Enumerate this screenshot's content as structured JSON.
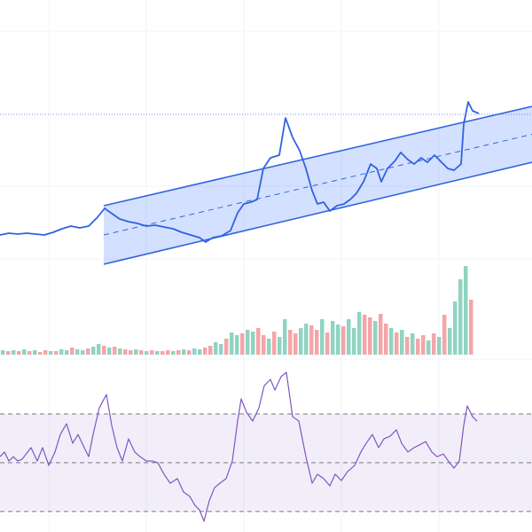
{
  "chart_data": [
    {
      "type": "line",
      "pane": "price",
      "xlim": [
        0,
        600
      ],
      "ylim": [
        0,
        290
      ],
      "x": [
        0,
        10,
        20,
        30,
        40,
        50,
        60,
        70,
        80,
        90,
        100,
        110,
        118,
        125,
        135,
        145,
        155,
        165,
        175,
        185,
        195,
        205,
        215,
        225,
        232,
        240,
        250,
        260,
        268,
        275,
        283,
        290,
        297,
        305,
        315,
        322,
        330,
        338,
        345,
        352,
        358,
        365,
        372,
        380,
        388,
        395,
        402,
        410,
        418,
        425,
        430,
        437,
        445,
        452,
        460,
        467,
        475,
        482,
        490,
        497,
        505,
        512,
        520,
        523,
        528,
        533,
        540
      ],
      "values": [
        25,
        27,
        26,
        27,
        26,
        25,
        28,
        32,
        35,
        33,
        35,
        45,
        55,
        50,
        43,
        40,
        38,
        35,
        36,
        34,
        32,
        28,
        25,
        22,
        17,
        22,
        24,
        30,
        50,
        60,
        62,
        65,
        100,
        112,
        115,
        157,
        135,
        120,
        100,
        75,
        60,
        62,
        52,
        58,
        60,
        65,
        72,
        85,
        105,
        100,
        85,
        100,
        108,
        118,
        110,
        105,
        112,
        107,
        115,
        108,
        100,
        98,
        105,
        150,
        175,
        165,
        162
      ],
      "color": "#2f63e0",
      "channel": {
        "x": [
          117,
          600
        ],
        "upper": [
          58,
          170
        ],
        "middle": [
          25,
          138.5
        ],
        "lower": [
          -8,
          107
        ],
        "color": "#3366dd",
        "fill": "rgba(41,98,255,0.2)"
      },
      "level": 161,
      "level_color": "#6f8fe6"
    },
    {
      "type": "volume",
      "pane": "volume",
      "ylim": [
        0,
        110
      ],
      "values": [
        5,
        4,
        5,
        4,
        6,
        4,
        5,
        3,
        5,
        4,
        4,
        6,
        5,
        8,
        6,
        5,
        7,
        9,
        12,
        10,
        8,
        9,
        7,
        6,
        5,
        6,
        5,
        4,
        5,
        4,
        4,
        5,
        4,
        5,
        6,
        5,
        7,
        6,
        8,
        10,
        14,
        12,
        18,
        25,
        22,
        24,
        28,
        26,
        30,
        22,
        18,
        26,
        20,
        40,
        28,
        24,
        30,
        35,
        33,
        28,
        40,
        25,
        38,
        34,
        32,
        40,
        30,
        48,
        45,
        42,
        38,
        46,
        35,
        30,
        25,
        28,
        20,
        24,
        18,
        22,
        16,
        24,
        20,
        45,
        30,
        60,
        85,
        100,
        62
      ],
      "up": [
        true,
        false,
        true,
        false,
        true,
        false,
        true,
        false,
        false,
        true,
        false,
        true,
        true,
        false,
        true,
        true,
        false,
        true,
        true,
        false,
        true,
        false,
        true,
        false,
        false,
        true,
        false,
        true,
        false,
        true,
        false,
        false,
        true,
        false,
        true,
        false,
        true,
        true,
        false,
        false,
        true,
        true,
        false,
        true,
        true,
        false,
        true,
        true,
        false,
        false,
        true,
        false,
        true,
        true,
        false,
        false,
        true,
        true,
        false,
        false,
        true,
        false,
        true,
        true,
        false,
        true,
        true,
        true,
        false,
        false,
        true,
        false,
        false,
        true,
        false,
        true,
        false,
        true,
        false,
        false,
        true,
        false,
        true,
        false,
        true,
        true,
        true,
        true,
        false
      ],
      "up_color": "#8fd4c1",
      "down_color": "#f4a5a8"
    },
    {
      "type": "line",
      "pane": "rsi",
      "xlim": [
        0,
        600
      ],
      "ylim": [
        21.6,
        90.7
      ],
      "x": [
        0,
        5,
        10,
        15,
        20,
        25,
        35,
        42,
        48,
        55,
        62,
        68,
        75,
        82,
        88,
        95,
        100,
        105,
        112,
        120,
        126,
        132,
        138,
        145,
        152,
        158,
        165,
        172,
        178,
        185,
        192,
        200,
        207,
        214,
        220,
        225,
        230,
        236,
        242,
        248,
        255,
        262,
        268,
        272,
        278,
        285,
        292,
        298,
        305,
        310,
        317,
        323,
        330,
        337,
        345,
        352,
        358,
        365,
        372,
        378,
        385,
        392,
        400,
        407,
        413,
        420,
        427,
        433,
        440,
        447,
        453,
        460,
        467,
        473,
        480,
        487,
        493,
        500,
        507,
        512,
        518,
        523,
        527,
        533,
        538
      ],
      "values": [
        52.5,
        54.4,
        50.7,
        52.5,
        50.7,
        51.5,
        56.2,
        50.7,
        56.2,
        48.9,
        54.4,
        61.6,
        66.0,
        58.0,
        61.6,
        56.2,
        52.5,
        61.6,
        72.5,
        78.0,
        65.3,
        56.2,
        50.7,
        59.8,
        54.4,
        52.5,
        50.7,
        50.7,
        50.0,
        45.3,
        41.6,
        43.5,
        38.0,
        36.2,
        32.5,
        30.7,
        26.0,
        34.4,
        39.8,
        41.6,
        43.5,
        50.7,
        67.1,
        76.2,
        70.7,
        67.1,
        72.5,
        81.6,
        84.2,
        79.8,
        85.3,
        87.1,
        68.9,
        67.1,
        52.5,
        41.6,
        45.3,
        43.5,
        40.5,
        45.3,
        42.7,
        46.4,
        48.9,
        54.4,
        58.0,
        61.6,
        56.2,
        59.8,
        60.9,
        63.5,
        58.0,
        54.4,
        56.2,
        57.3,
        58.7,
        54.4,
        52.5,
        53.6,
        50.0,
        47.8,
        50.7,
        65.3,
        73.3,
        68.9,
        67.1
      ],
      "color": "#7e57c2",
      "bands": [
        70,
        50,
        30
      ],
      "band_fill": "rgba(126,87,194,0.1)",
      "band_color": "#787b86"
    }
  ]
}
